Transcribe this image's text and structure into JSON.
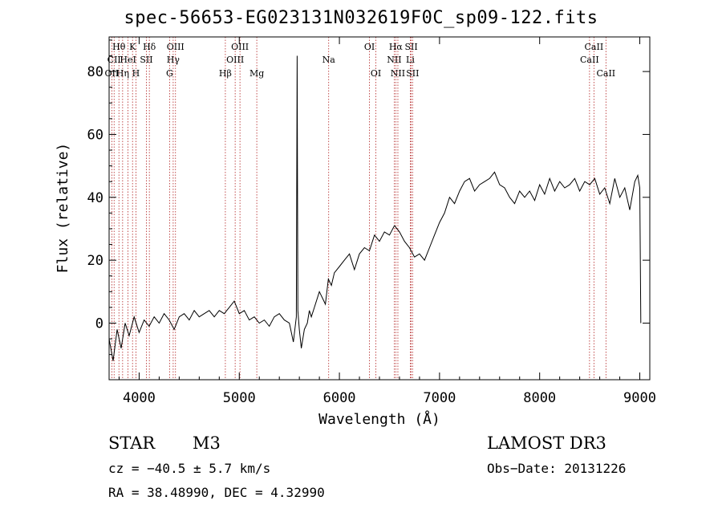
{
  "chart_data": {
    "type": "line",
    "title": "spec-56653-EG023131N032619F0C_sp09-122.fits",
    "xlabel": "Wavelength (Å)",
    "ylabel": "Flux (relative)",
    "xlim": [
      3700,
      9100
    ],
    "ylim": [
      -18,
      91
    ],
    "xticks": [
      4000,
      5000,
      6000,
      7000,
      8000,
      9000
    ],
    "yticks": [
      0,
      20,
      40,
      60,
      80
    ],
    "grid": false,
    "series": [
      {
        "color": "#000000",
        "x": [
          3700,
          3740,
          3780,
          3820,
          3860,
          3900,
          3950,
          4000,
          4050,
          4100,
          4150,
          4200,
          4250,
          4300,
          4350,
          4400,
          4450,
          4500,
          4550,
          4600,
          4650,
          4700,
          4750,
          4800,
          4850,
          4900,
          4950,
          5000,
          5050,
          5100,
          5150,
          5200,
          5250,
          5300,
          5350,
          5400,
          5450,
          5500,
          5540,
          5570,
          5578,
          5585,
          5600,
          5620,
          5650,
          5680,
          5700,
          5720,
          5750,
          5800,
          5830,
          5860,
          5890,
          5920,
          5950,
          6000,
          6050,
          6100,
          6150,
          6200,
          6250,
          6300,
          6350,
          6400,
          6450,
          6500,
          6550,
          6600,
          6650,
          6700,
          6750,
          6800,
          6850,
          6900,
          6950,
          7000,
          7050,
          7100,
          7150,
          7200,
          7250,
          7300,
          7350,
          7400,
          7450,
          7500,
          7550,
          7600,
          7650,
          7700,
          7750,
          7800,
          7850,
          7900,
          7950,
          8000,
          8050,
          8100,
          8150,
          8200,
          8250,
          8300,
          8350,
          8400,
          8450,
          8500,
          8550,
          8600,
          8650,
          8700,
          8750,
          8800,
          8850,
          8900,
          8950,
          8980,
          9000,
          9010
        ],
        "y": [
          -5,
          -12,
          -2,
          -8,
          0,
          -4,
          2,
          -3,
          1,
          -1,
          2,
          0,
          3,
          1,
          -2,
          2,
          3,
          1,
          4,
          2,
          3,
          4,
          2,
          4,
          3,
          5,
          7,
          3,
          4,
          1,
          2,
          0,
          1,
          -1,
          2,
          3,
          1,
          0,
          -6,
          2,
          85,
          4,
          -2,
          -8,
          -2,
          0,
          4,
          2,
          5,
          10,
          8,
          6,
          14,
          12,
          16,
          18,
          20,
          22,
          17,
          22,
          24,
          23,
          28,
          26,
          29,
          28,
          31,
          29,
          26,
          24,
          21,
          22,
          20,
          24,
          28,
          32,
          35,
          40,
          38,
          42,
          45,
          46,
          42,
          44,
          45,
          46,
          48,
          44,
          43,
          40,
          38,
          42,
          40,
          42,
          39,
          44,
          41,
          46,
          42,
          45,
          43,
          44,
          46,
          42,
          45,
          44,
          46,
          41,
          43,
          38,
          46,
          40,
          43,
          36,
          45,
          47,
          43,
          0
        ]
      }
    ],
    "emission_lines": [
      {
        "label": "Hθ",
        "x": 3798,
        "row": 1
      },
      {
        "label": "CII",
        "x": 3750,
        "row": 2
      },
      {
        "label": "OII",
        "x": 3727,
        "row": 3
      },
      {
        "label": "Hη",
        "x": 3835,
        "row": 3
      },
      {
        "label": "HeI",
        "x": 3889,
        "row": 2
      },
      {
        "label": "K",
        "x": 3934,
        "row": 1
      },
      {
        "label": "H",
        "x": 3968,
        "row": 3
      },
      {
        "label": "SII",
        "x": 4072,
        "row": 2
      },
      {
        "label": "Hδ",
        "x": 4102,
        "row": 1
      },
      {
        "label": "OIII",
        "x": 4363,
        "row": 1
      },
      {
        "label": "Hγ",
        "x": 4340,
        "row": 2
      },
      {
        "label": "G",
        "x": 4304,
        "row": 3
      },
      {
        "label": "Hβ",
        "x": 4861,
        "row": 3
      },
      {
        "label": "OIII",
        "x": 5007,
        "row": 1
      },
      {
        "label": "OIII",
        "x": 4959,
        "row": 2
      },
      {
        "label": "Mg",
        "x": 5175,
        "row": 3
      },
      {
        "label": "Na",
        "x": 5893,
        "row": 2
      },
      {
        "label": "OI",
        "x": 6300,
        "row": 1
      },
      {
        "label": "OI",
        "x": 6364,
        "row": 3
      },
      {
        "label": "Hα",
        "x": 6563,
        "row": 1
      },
      {
        "label": "NII",
        "x": 6548,
        "row": 2
      },
      {
        "label": "NII",
        "x": 6584,
        "row": 3
      },
      {
        "label": "SII",
        "x": 6717,
        "row": 1
      },
      {
        "label": "Li",
        "x": 6708,
        "row": 2
      },
      {
        "label": "SII",
        "x": 6731,
        "row": 3
      },
      {
        "label": "CaII",
        "x": 8542,
        "row": 1
      },
      {
        "label": "CaII",
        "x": 8498,
        "row": 2
      },
      {
        "label": "CaII",
        "x": 8662,
        "row": 3
      }
    ]
  },
  "info": {
    "object_class": "STAR",
    "subclass": "M3",
    "survey": "LAMOST DR3",
    "cz": "cz = −40.5 ± 5.7 km/s",
    "obs_date": "Obs−Date: 20131226",
    "coords": "RA =  38.48990, DEC =   4.32990"
  },
  "colors": {
    "spectrum": "#000000",
    "line_marker": "#b22222"
  }
}
